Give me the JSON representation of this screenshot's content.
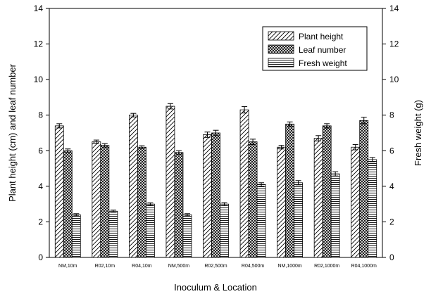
{
  "chart_data": {
    "type": "bar",
    "title": "",
    "xlabel": "Inoculum & Location",
    "ylabel": "Plant height (cm) and  leaf number",
    "y2label": "Fresh weight (g)",
    "ylim": [
      0,
      14
    ],
    "y2lim": [
      0,
      14
    ],
    "yticks": [
      "0",
      "2",
      "4",
      "6",
      "8",
      "10",
      "12",
      "14"
    ],
    "y2ticks": [
      "0",
      "2",
      "4",
      "6",
      "8",
      "10",
      "12",
      "14"
    ],
    "categories": [
      "NM,10m",
      "R02,10m",
      "R04,10m",
      "NM,500m",
      "R02,500m",
      "R04,500m",
      "NM,1000m",
      "R02,1000m",
      "R04,1000m"
    ],
    "legend_position": "top-right",
    "grid": false,
    "series": [
      {
        "name": "Plant height",
        "pattern": "diagonal-hatch",
        "values": [
          7.4,
          6.5,
          8.0,
          8.5,
          6.9,
          8.3,
          6.2,
          6.7,
          6.2
        ],
        "errors": [
          0.12,
          0.1,
          0.1,
          0.15,
          0.15,
          0.18,
          0.1,
          0.15,
          0.15
        ]
      },
      {
        "name": "Leaf number",
        "pattern": "crosshatch",
        "values": [
          6.0,
          6.3,
          6.2,
          5.9,
          7.0,
          6.5,
          7.5,
          7.4,
          7.7
        ],
        "errors": [
          0.1,
          0.1,
          0.08,
          0.1,
          0.15,
          0.15,
          0.12,
          0.12,
          0.18
        ]
      },
      {
        "name": "Fresh weight",
        "pattern": "horizontal-lines",
        "values": [
          2.4,
          2.6,
          3.0,
          2.4,
          3.0,
          4.1,
          4.2,
          4.7,
          5.5
        ],
        "errors": [
          0.06,
          0.06,
          0.07,
          0.06,
          0.08,
          0.1,
          0.12,
          0.12,
          0.12
        ]
      }
    ]
  }
}
